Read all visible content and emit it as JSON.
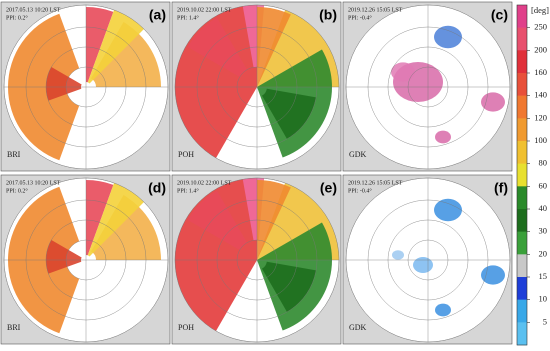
{
  "panels": [
    {
      "label": "(a)",
      "time": "2017.05.13 10:20 LST",
      "ppi": "PPI: 0.2°",
      "site": "BRI"
    },
    {
      "label": "(b)",
      "time": "2019.10.02 22:00 LST",
      "ppi": "PPI: 1.4°",
      "site": "POH"
    },
    {
      "label": "(c)",
      "time": "2019.12.26 15:05 LST",
      "ppi": "PPI: -0.4°",
      "site": "GDK"
    },
    {
      "label": "(d)",
      "time": "2017.05.13 10:20 LST",
      "ppi": "PPI: 0.2°",
      "site": "BRI"
    },
    {
      "label": "(e)",
      "time": "2019.10.02 22:00 LST",
      "ppi": "PPI: 1.4°",
      "site": "POH"
    },
    {
      "label": "(f)",
      "time": "2019.12.26 15:05 LST",
      "ppi": "PPI: -0.4°",
      "site": "GDK"
    }
  ],
  "colorbar": {
    "unit": "[deg]",
    "ticks": [
      250,
      200,
      160,
      140,
      120,
      100,
      80,
      60,
      40,
      30,
      20,
      15,
      10,
      5
    ]
  }
}
